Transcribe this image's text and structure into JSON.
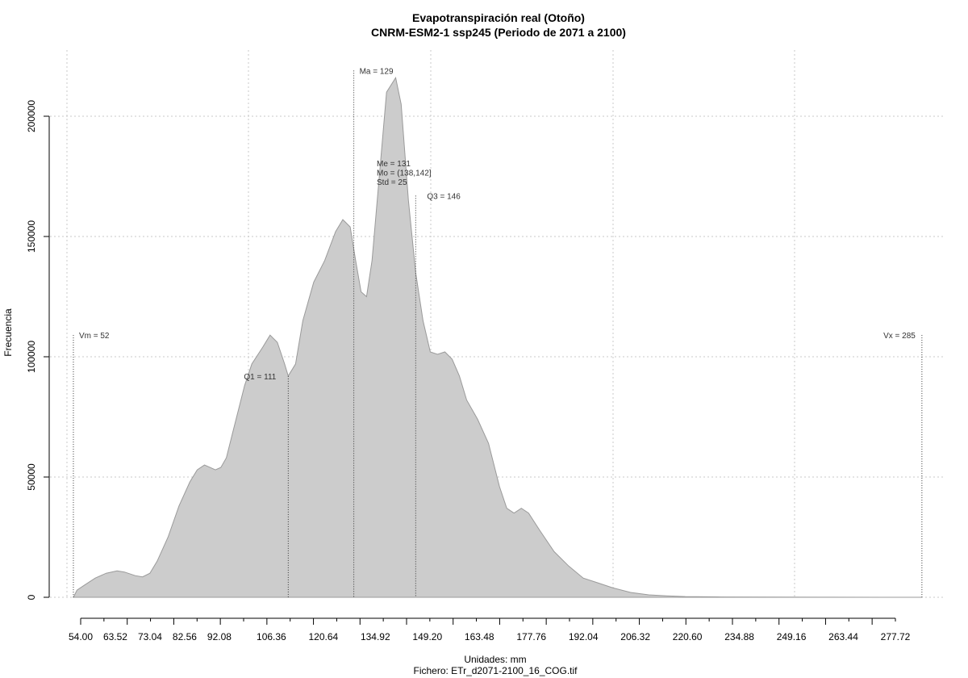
{
  "chart_data": {
    "type": "area",
    "title": "Evapotranspiración real (Otoño)",
    "subtitle": "CNRM-ESM2-1 ssp245 (Periodo de 2071 a 2100)",
    "xlabel": "Unidades: mm",
    "xlabel2": "Fichero: ETr_d2071-2100_16_COG.tif",
    "ylabel": "Frecuencia",
    "xlim": [
      52,
      287
    ],
    "ylim": [
      0,
      222000
    ],
    "grid": true,
    "fill_color": "#cccccc",
    "x_ticks": [
      54.0,
      63.52,
      73.04,
      82.56,
      92.08,
      106.36,
      120.64,
      134.92,
      149.2,
      163.48,
      177.76,
      192.04,
      206.32,
      220.6,
      234.88,
      249.16,
      263.44,
      277.72
    ],
    "x_tick_labels": [
      "54.00",
      "63.52",
      "73.04",
      "82.56",
      "92.08",
      "106.36",
      "120.64",
      "134.92",
      "149.20",
      "163.48",
      "177.76",
      "192.04",
      "206.32",
      "220.60",
      "234.88",
      "249.16",
      "263.44",
      "277.72"
    ],
    "y_ticks": [
      0,
      50000,
      100000,
      150000,
      200000
    ],
    "y_tick_labels": [
      "0",
      "50000",
      "100000",
      "150000",
      "200000"
    ],
    "x": [
      52,
      53,
      55,
      58,
      61,
      64,
      66,
      69,
      71,
      73,
      75,
      78,
      81,
      84,
      86,
      88,
      89.5,
      91,
      92.5,
      94,
      96,
      99,
      101,
      104,
      106,
      108,
      110,
      111,
      113,
      115,
      118,
      121,
      124,
      126,
      128,
      129.5,
      131,
      132.5,
      134,
      136,
      138,
      140.5,
      142,
      144,
      146,
      148,
      150,
      152,
      154,
      156,
      158,
      160,
      163,
      166,
      169,
      171,
      173,
      175,
      177,
      180,
      184,
      188,
      192,
      196,
      200,
      205,
      210,
      215,
      220,
      230,
      245,
      260,
      275,
      285
    ],
    "values": [
      0,
      3000,
      5000,
      8000,
      10000,
      11000,
      10500,
      9000,
      8500,
      10000,
      15000,
      25000,
      38000,
      48000,
      53000,
      55000,
      54000,
      53000,
      54000,
      58000,
      70000,
      88000,
      97000,
      104000,
      109000,
      106000,
      97000,
      92000,
      97000,
      115000,
      131000,
      140000,
      152000,
      157000,
      154000,
      140000,
      127000,
      125000,
      140000,
      175000,
      210000,
      216000,
      205000,
      165000,
      135000,
      115000,
      102000,
      101000,
      102000,
      99000,
      92000,
      82000,
      74000,
      64000,
      46000,
      37000,
      35000,
      37000,
      35000,
      28000,
      19000,
      13000,
      8000,
      6000,
      4000,
      2000,
      1000,
      600,
      300,
      150,
      60,
      20,
      10,
      0
    ],
    "annotations": [
      {
        "label": "Vm = 52",
        "x": 52,
        "line_top": 109000
      },
      {
        "label": "Q1 = 111",
        "x": 111,
        "line_top": 92000
      },
      {
        "label": "Ma = 129",
        "x": 129,
        "line_top": 219000
      },
      {
        "label": "Q3 = 146",
        "x": 146,
        "line_top": 167000
      },
      {
        "label": "Vx = 285",
        "x": 285,
        "line_top": 109000
      }
    ],
    "stats_lines": [
      "Me = 131",
      "Mo = (138,142]",
      "Std = 25"
    ]
  }
}
